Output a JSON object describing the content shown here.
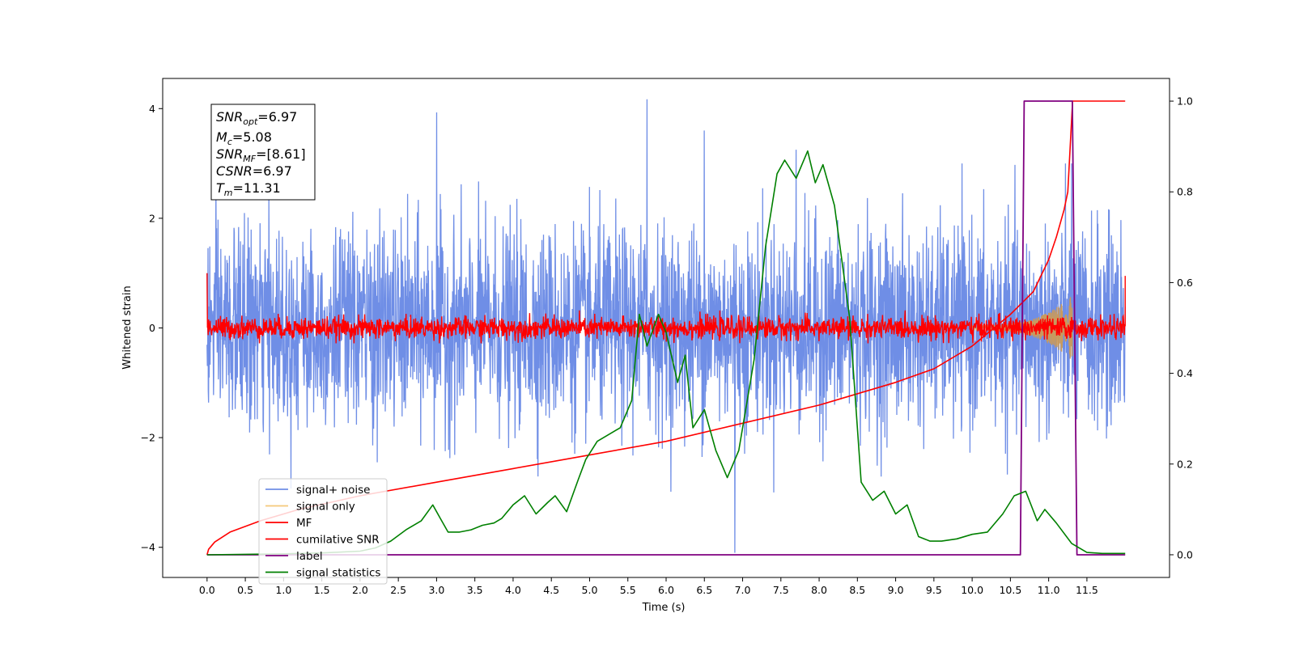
{
  "chart_data": {
    "type": "line",
    "xlabel": "Time (s)",
    "ylabel": "Whitened strain",
    "xlim": [
      -0.58,
      12.58
    ],
    "ylim": [
      -4.55,
      4.55
    ],
    "y2lim": [
      -0.05,
      1.05
    ],
    "grid": false,
    "legend_position": "lower-left",
    "x_ticks": [
      "0.0",
      "0.5",
      "1.0",
      "1.5",
      "2.0",
      "2.5",
      "3.0",
      "3.5",
      "4.0",
      "4.5",
      "5.0",
      "5.5",
      "6.0",
      "6.5",
      "7.0",
      "7.5",
      "8.0",
      "8.5",
      "9.0",
      "9.5",
      "10.0",
      "10.5",
      "11.0",
      "11.5"
    ],
    "y_ticks": [
      "−4",
      "−2",
      "0",
      "2",
      "4"
    ],
    "y2_ticks": [
      "0.0",
      "0.2",
      "0.4",
      "0.6",
      "0.8",
      "1.0"
    ],
    "colors": {
      "signal_noise": "#6f8ee6",
      "signal_only": "#f5c97a",
      "signal_fill": "#c89a5e",
      "mf": "#ff0000",
      "cumulative_snr": "#ff0000",
      "label": "#800080",
      "signal_statistics": "#008000"
    },
    "annotation": {
      "snr_opt": {
        "symbol": "SNR",
        "sub": "opt",
        "value": "=6.97"
      },
      "mc": {
        "symbol": "M",
        "sub": "c",
        "value": "=5.08"
      },
      "snr_mf": {
        "symbol": "SNR",
        "sub": "MF",
        "value": "=[8.61]"
      },
      "csnr": {
        "symbol": "CSNR",
        "sub": "",
        "value": "=6.97"
      },
      "tm": {
        "symbol": "T",
        "sub": "m",
        "value": "=11.31"
      }
    },
    "legend": [
      {
        "key": "signal_noise",
        "label": "signal+ noise"
      },
      {
        "key": "signal_only",
        "label": "signal only"
      },
      {
        "key": "mf",
        "label": "MF"
      },
      {
        "key": "cumulative_snr",
        "label": "cumilative SNR"
      },
      {
        "key": "label",
        "label": "label"
      },
      {
        "key": "signal_statistics",
        "label": "signal statistics"
      }
    ],
    "series": [
      {
        "name": "signal+ noise",
        "axis": "left",
        "summary": "whitened strain noise, roughly ±2 with spikes up to 4.2 and down to -4.1, spanning t = 0.0 to 12.0",
        "x_range": [
          0.0,
          12.0
        ],
        "notable_spikes": [
          [
            3.0,
            3.93
          ],
          [
            5.75,
            4.17
          ],
          [
            6.9,
            -4.1
          ],
          [
            6.5,
            3.6
          ],
          [
            7.7,
            3.25
          ],
          [
            11.3,
            3.0
          ]
        ]
      },
      {
        "name": "signal only",
        "axis": "left",
        "summary": "chirp signal growing from ~0 to ±0.6 amplitude between t = 10.0 and 11.31",
        "x_range": [
          10.0,
          11.31
        ]
      },
      {
        "name": "MF",
        "axis": "left",
        "summary": "matched filter output, noisy band about ±0.3 around 0, starting at 1.0 and ending at 0.95",
        "x_range": [
          0.0,
          12.0
        ]
      },
      {
        "name": "cumilative SNR",
        "axis": "right",
        "x": [
          0.0,
          0.02,
          0.1,
          0.3,
          0.7,
          1.2,
          2.0,
          3.0,
          4.0,
          5.0,
          6.0,
          7.0,
          8.0,
          9.0,
          9.5,
          10.0,
          10.5,
          10.8,
          11.0,
          11.1,
          11.2,
          11.25,
          11.31,
          11.31,
          12.0
        ],
        "y": [
          0.0,
          0.012,
          0.028,
          0.05,
          0.075,
          0.1,
          0.13,
          0.16,
          0.19,
          0.22,
          0.25,
          0.29,
          0.33,
          0.38,
          0.41,
          0.46,
          0.53,
          0.58,
          0.65,
          0.7,
          0.76,
          0.8,
          0.99,
          1.0,
          1.0
        ]
      },
      {
        "name": "label",
        "axis": "right",
        "x": [
          0.0,
          10.63,
          10.68,
          11.31,
          11.37,
          12.0
        ],
        "y": [
          0.0,
          0.0,
          1.0,
          1.0,
          0.0,
          0.0
        ]
      },
      {
        "name": "signal statistics",
        "axis": "right",
        "x": [
          0.0,
          0.5,
          1.0,
          1.5,
          2.0,
          2.2,
          2.4,
          2.6,
          2.8,
          2.95,
          3.05,
          3.15,
          3.3,
          3.45,
          3.6,
          3.75,
          3.85,
          4.0,
          4.15,
          4.3,
          4.45,
          4.55,
          4.7,
          4.85,
          4.95,
          5.1,
          5.2,
          5.4,
          5.55,
          5.65,
          5.75,
          5.9,
          6.0,
          6.15,
          6.25,
          6.35,
          6.5,
          6.65,
          6.8,
          6.95,
          7.15,
          7.3,
          7.45,
          7.55,
          7.7,
          7.85,
          7.95,
          8.05,
          8.2,
          8.4,
          8.55,
          8.7,
          8.85,
          9.0,
          9.15,
          9.3,
          9.45,
          9.6,
          9.8,
          10.0,
          10.2,
          10.4,
          10.55,
          10.7,
          10.85,
          10.95,
          11.1,
          11.3,
          11.5,
          11.7,
          12.0
        ],
        "y": [
          0.0,
          0.001,
          0.002,
          0.004,
          0.008,
          0.015,
          0.03,
          0.055,
          0.075,
          0.11,
          0.08,
          0.05,
          0.05,
          0.055,
          0.065,
          0.07,
          0.08,
          0.11,
          0.13,
          0.09,
          0.115,
          0.13,
          0.095,
          0.165,
          0.21,
          0.25,
          0.26,
          0.28,
          0.34,
          0.53,
          0.46,
          0.53,
          0.49,
          0.38,
          0.44,
          0.28,
          0.32,
          0.23,
          0.17,
          0.23,
          0.43,
          0.68,
          0.84,
          0.87,
          0.83,
          0.89,
          0.82,
          0.86,
          0.77,
          0.52,
          0.16,
          0.12,
          0.14,
          0.09,
          0.11,
          0.04,
          0.03,
          0.03,
          0.035,
          0.045,
          0.05,
          0.09,
          0.13,
          0.14,
          0.075,
          0.1,
          0.07,
          0.025,
          0.005,
          0.003,
          0.003
        ]
      }
    ]
  }
}
